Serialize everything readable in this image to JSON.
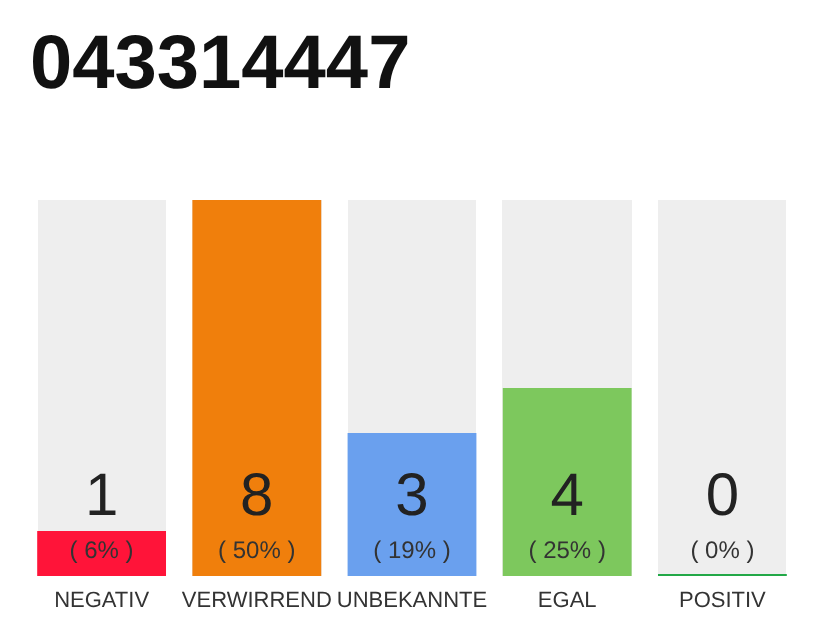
{
  "chart_data": {
    "type": "bar",
    "title": "043314447",
    "categories": [
      "NEGATIV",
      "VERWIRREND",
      "UNBEKANNTE",
      "EGAL",
      "POSITIV"
    ],
    "values": [
      6,
      50,
      19,
      25,
      0
    ],
    "colors": [
      "#ff1439",
      "#f07f0c",
      "#6aa0ee",
      "#7dc85d",
      "#22a847"
    ],
    "value_labels": [
      "1\n( 6% )",
      "8\n( 50% )",
      "3\n( 19% )",
      "4\n( 25% )",
      "0\n( 0% )"
    ],
    "grid": false
  }
}
